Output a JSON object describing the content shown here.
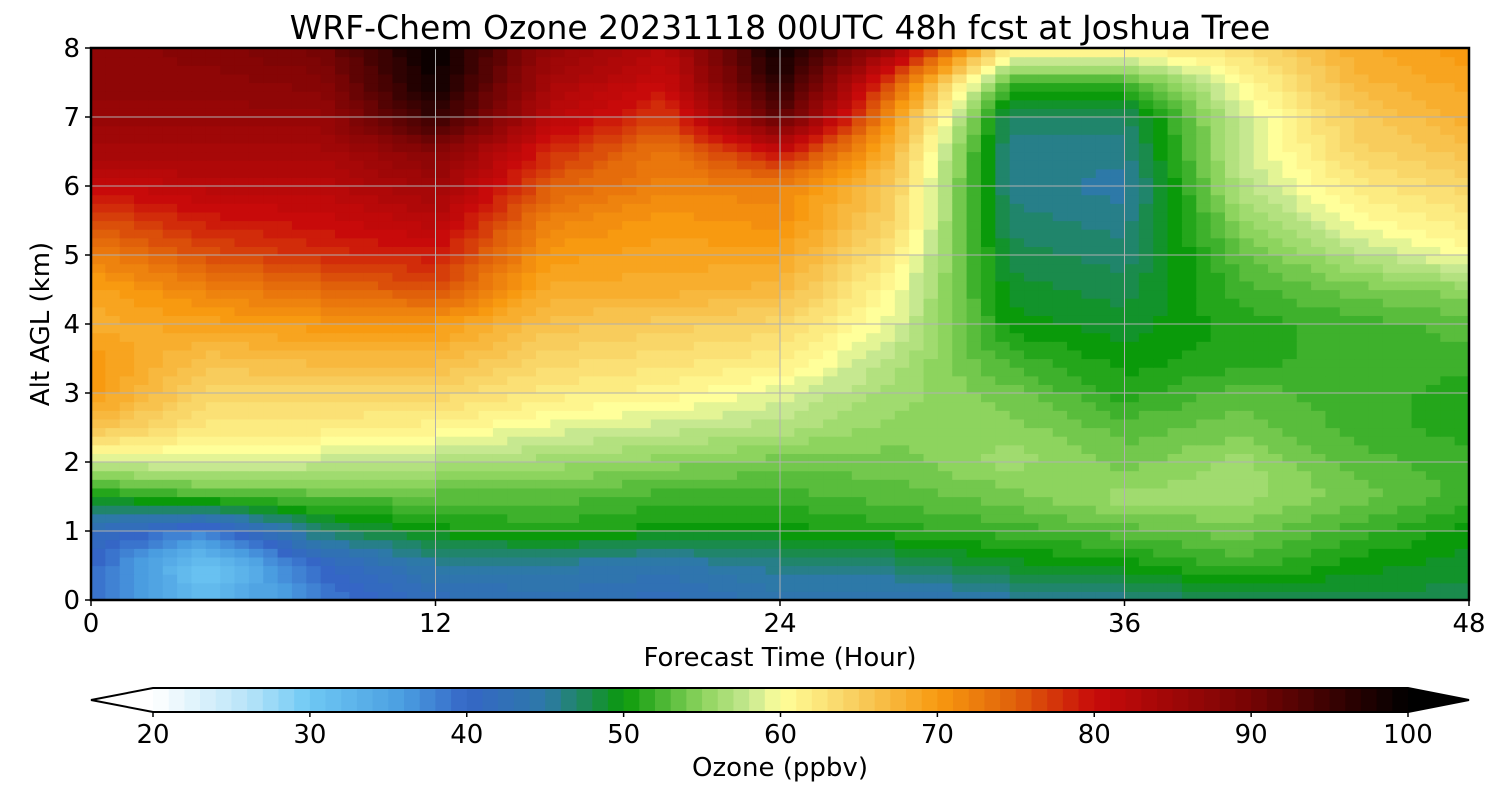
{
  "chart_data": {
    "type": "heatmap",
    "title": "WRF-Chem Ozone  20231118 00UTC 48h fcst at Joshua Tree",
    "xlabel": "Forecast Time (Hour)",
    "ylabel": "Alt AGL (km)",
    "xlim": [
      0,
      48
    ],
    "ylim": [
      0,
      8
    ],
    "xticks": [
      "0",
      "12",
      "24",
      "36",
      "48"
    ],
    "yticks": [
      "0",
      "1",
      "2",
      "3",
      "4",
      "5",
      "6",
      "7",
      "8"
    ],
    "grid": true,
    "x": [
      0,
      4,
      8,
      12,
      16,
      20,
      24,
      28,
      32,
      36,
      40,
      44,
      48
    ],
    "y": [
      0,
      0.5,
      1,
      1.5,
      2,
      2.5,
      3,
      3.5,
      4,
      4.5,
      5,
      5.5,
      6,
      6.5,
      7,
      7.5,
      8
    ],
    "z": [
      [
        40,
        32,
        38,
        42,
        43,
        42,
        44,
        43,
        45,
        46,
        48,
        48,
        48
      ],
      [
        40,
        30,
        40,
        45,
        45,
        44,
        46,
        47,
        49,
        50,
        52,
        50,
        49
      ],
      [
        42,
        38,
        47,
        50,
        51,
        50,
        50,
        51,
        52,
        53,
        54,
        52,
        50
      ],
      [
        50,
        52,
        53,
        53,
        53,
        52,
        52,
        53,
        54,
        56,
        56,
        54,
        52
      ],
      [
        58,
        59,
        58,
        57,
        56,
        55,
        54,
        54,
        56,
        54,
        56,
        53,
        52
      ],
      [
        66,
        62,
        62,
        61,
        59,
        58,
        57,
        55,
        55,
        53,
        54,
        52,
        51
      ],
      [
        70,
        64,
        64,
        64,
        62,
        61,
        59,
        56,
        54,
        51,
        53,
        52,
        51
      ],
      [
        70,
        66,
        67,
        67,
        64,
        63,
        62,
        57,
        52,
        50,
        51,
        52,
        52
      ],
      [
        68,
        69,
        70,
        70,
        66,
        65,
        64,
        59,
        50,
        49,
        51,
        52,
        53
      ],
      [
        69,
        72,
        74,
        76,
        68,
        68,
        67,
        60,
        49,
        48,
        52,
        54,
        55
      ],
      [
        72,
        76,
        78,
        79,
        70,
        69,
        69,
        62,
        48,
        47,
        53,
        57,
        60
      ],
      [
        76,
        79,
        80,
        82,
        72,
        70,
        71,
        64,
        47,
        46,
        55,
        60,
        62
      ],
      [
        80,
        82,
        82,
        85,
        75,
        72,
        72,
        65,
        46,
        45,
        57,
        62,
        64
      ],
      [
        84,
        84,
        84,
        88,
        78,
        73,
        80,
        67,
        46,
        46,
        58,
        64,
        66
      ],
      [
        86,
        86,
        86,
        96,
        82,
        77,
        92,
        70,
        47,
        47,
        58,
        65,
        68
      ],
      [
        87,
        87,
        88,
        99,
        84,
        80,
        97,
        75,
        52,
        52,
        60,
        67,
        69
      ],
      [
        87,
        88,
        90,
        100,
        86,
        82,
        99,
        85,
        62,
        62,
        63,
        68,
        70
      ]
    ],
    "colorbar": {
      "label": "Ozone  (ppbv)",
      "min": 20,
      "max": 100,
      "ticks": [
        "20",
        "30",
        "40",
        "50",
        "60",
        "70",
        "80",
        "90",
        "100"
      ],
      "extend": "both"
    },
    "colormap": [
      [
        20,
        "#ffffff"
      ],
      [
        26,
        "#b8e4f8"
      ],
      [
        30,
        "#6ec8f4"
      ],
      [
        36,
        "#4a9de0"
      ],
      [
        40,
        "#3566c6"
      ],
      [
        45,
        "#2d79a8"
      ],
      [
        48,
        "#1a8b4c"
      ],
      [
        50,
        "#0a9a0a"
      ],
      [
        55,
        "#8dd45e"
      ],
      [
        58,
        "#c6e890"
      ],
      [
        60,
        "#ffff9a"
      ],
      [
        65,
        "#f8cc5c"
      ],
      [
        70,
        "#f89a10"
      ],
      [
        75,
        "#e0600a"
      ],
      [
        80,
        "#c80a0a"
      ],
      [
        90,
        "#760404"
      ],
      [
        100,
        "#000000"
      ]
    ]
  }
}
